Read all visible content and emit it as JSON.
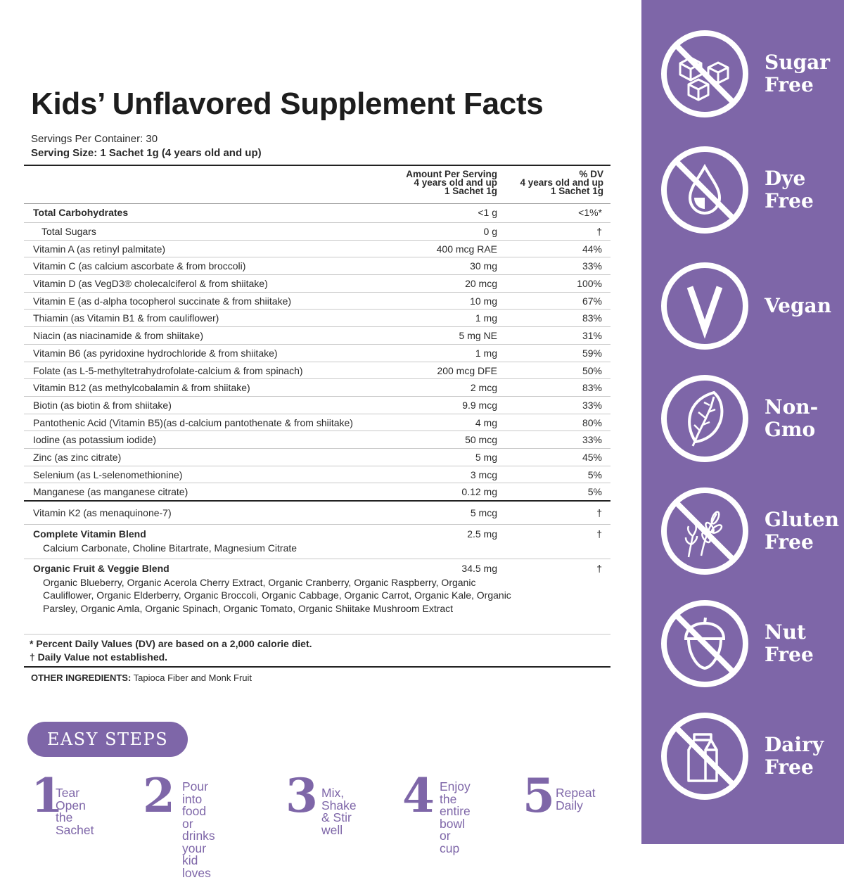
{
  "title": "Kids’ Unflavored Supplement Facts",
  "servings_per_container": "Servings Per Container: 30",
  "serving_size": "Serving Size: 1 Sachet 1g (4 years old and up)",
  "header": {
    "amount_l1": "Amount Per Serving",
    "amount_l2": "4 years old and up",
    "amount_l3": "1 Sachet 1g",
    "dv_l1": "% DV",
    "dv_l2": "4 years old and up",
    "dv_l3": "1 Sachet 1g"
  },
  "rows": [
    {
      "name": "Total Carbohydrates",
      "amount": "<1 g",
      "dv": "<1%*"
    },
    {
      "name": "Total Sugars",
      "amount": "0 g",
      "dv": "†"
    },
    {
      "name": "Vitamin A (as retinyl palmitate)",
      "amount": "400 mcg RAE",
      "dv": "44%"
    },
    {
      "name": "Vitamin C (as calcium ascorbate & from broccoli)",
      "amount": "30 mg",
      "dv": "33%"
    },
    {
      "name": "Vitamin D (as VegD3® cholecalciferol & from shiitake)",
      "amount": "20 mcg",
      "dv": "100%"
    },
    {
      "name": "Vitamin E (as d-alpha tocopherol succinate & from shiitake)",
      "amount": "10 mg",
      "dv": "67%"
    },
    {
      "name": "Thiamin (as Vitamin B1 & from cauliflower)",
      "amount": "1 mg",
      "dv": "83%"
    },
    {
      "name": "Niacin (as niacinamide & from shiitake)",
      "amount": "5 mg NE",
      "dv": "31%"
    },
    {
      "name": "Vitamin B6 (as pyridoxine hydrochloride & from shiitake)",
      "amount": "1 mg",
      "dv": "59%"
    },
    {
      "name": "Folate (as L-5-methyltetrahydrofolate-calcium & from spinach)",
      "amount": "200 mcg DFE",
      "dv": "50%"
    },
    {
      "name": "Vitamin B12 (as methylcobalamin & from shiitake)",
      "amount": "2 mcg",
      "dv": "83%"
    },
    {
      "name": "Biotin (as biotin & from shiitake)",
      "amount": "9.9 mcg",
      "dv": "33%"
    },
    {
      "name": "Pantothenic Acid (Vitamin B5)(as d-calcium pantothenate & from shiitake)",
      "amount": "4 mg",
      "dv": "80%"
    },
    {
      "name": "Iodine (as potassium iodide)",
      "amount": "50 mcg",
      "dv": "33%"
    },
    {
      "name": "Zinc (as zinc citrate)",
      "amount": "5 mg",
      "dv": "45%"
    },
    {
      "name": "Selenium (as L-selenomethionine)",
      "amount": "3 mcg",
      "dv": "5%"
    },
    {
      "name": "Manganese (as manganese citrate)",
      "amount": "0.12 mg",
      "dv": "5%"
    },
    {
      "name": "Vitamin K2 (as menaquinone-7)",
      "amount": "5 mcg",
      "dv": "†"
    }
  ],
  "blends": [
    {
      "name": "Complete Vitamin Blend",
      "amount": "2.5 mg",
      "dv": "†",
      "ingredients": "Calcium Carbonate, Choline Bitartrate, Magnesium Citrate"
    },
    {
      "name": "Organic Fruit & Veggie Blend",
      "amount": "34.5 mg",
      "dv": "†",
      "ingredients": "Organic Blueberry, Organic Acerola Cherry Extract, Organic Cranberry, Organic Raspberry, Organic Cauliflower, Organic Elderberry, Organic Broccoli, Organic Cabbage, Organic Carrot, Organic Kale, Organic Parsley, Organic Amla, Organic Spinach, Organic Tomato, Organic Shiitake Mushroom Extract"
    }
  ],
  "footnotes": [
    "* Percent Daily Values (DV) are based on a 2,000 calorie diet.",
    "† Daily Value not established."
  ],
  "other_label": "OTHER INGREDIENTS:",
  "other_value": " Tapioca Fiber and Monk Fruit",
  "easy_steps": "EASY STEPS",
  "steps": [
    {
      "num": "1",
      "text": "Tear Open\nthe Sachet"
    },
    {
      "num": "2",
      "text": "Pour into food\nor drinks your\nkid loves"
    },
    {
      "num": "3",
      "text": "Mix, Shake\n& Stir well"
    },
    {
      "num": "4",
      "text": "Enjoy the\nentire bowl\nor cup"
    },
    {
      "num": "5",
      "text": "Repeat\nDaily"
    }
  ],
  "badges": [
    {
      "line1": "Sugar",
      "line2": "Free",
      "icon": "sugar-cubes-icon"
    },
    {
      "line1": "Dye",
      "line2": "Free",
      "icon": "drop-icon"
    },
    {
      "line1": "Vegan",
      "line2": "",
      "icon": "v-icon"
    },
    {
      "line1": "Non-",
      "line2": "Gmo",
      "icon": "leaf-icon"
    },
    {
      "line1": "Gluten",
      "line2": "Free",
      "icon": "wheat-icon"
    },
    {
      "line1": "Nut",
      "line2": "Free",
      "icon": "nut-icon"
    },
    {
      "line1": "Dairy",
      "line2": "Free",
      "icon": "milk-carton-icon"
    }
  ],
  "colors": {
    "accent": "#7e66a8",
    "text": "#2a2a2a",
    "background": "#ffffff"
  }
}
